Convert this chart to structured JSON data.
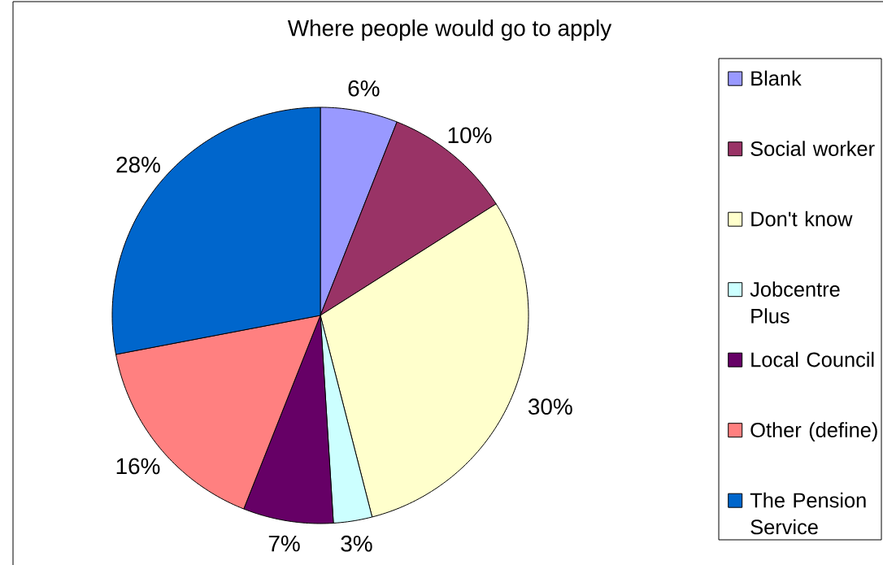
{
  "chart_data": {
    "type": "pie",
    "title": "Where people would go to apply",
    "categories": [
      "Blank",
      "Social worker",
      "Don't know",
      "Jobcentre Plus",
      "Local Council",
      "Other (define)",
      "The Pension Service"
    ],
    "values": [
      6,
      10,
      30,
      3,
      7,
      16,
      28
    ],
    "colors": [
      "#9999ff",
      "#993366",
      "#ffffcc",
      "#ccffff",
      "#660066",
      "#ff8080",
      "#0066cc"
    ],
    "value_labels": [
      "6%",
      "10%",
      "30%",
      "3%",
      "7%",
      "16%",
      "28%"
    ],
    "legend": "right"
  }
}
